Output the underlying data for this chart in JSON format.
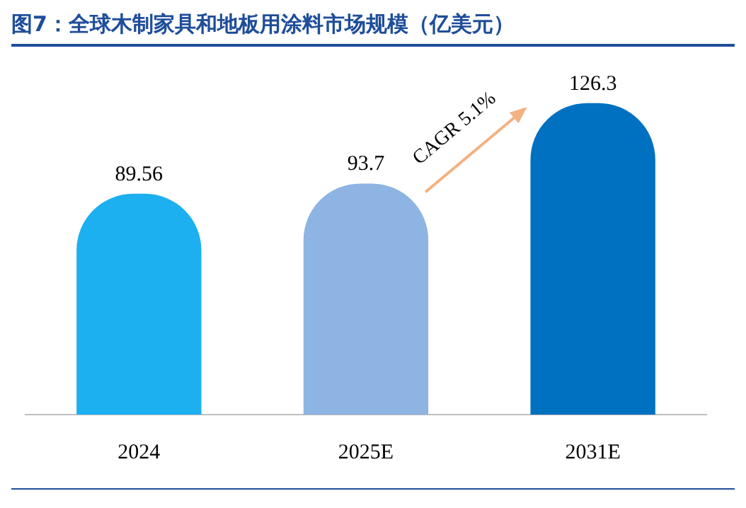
{
  "chart_data": {
    "type": "bar",
    "title": "图7：全球木制家具和地板用涂料市场规模（亿美元）",
    "categories": [
      "2024",
      "2025E",
      "2031E"
    ],
    "values": [
      89.56,
      93.7,
      126.3
    ],
    "colors": [
      "#1cb0f0",
      "#8eb4e3",
      "#0070c0"
    ],
    "data_labels": true,
    "annotations": [
      "CAGR 5.1%"
    ]
  }
}
